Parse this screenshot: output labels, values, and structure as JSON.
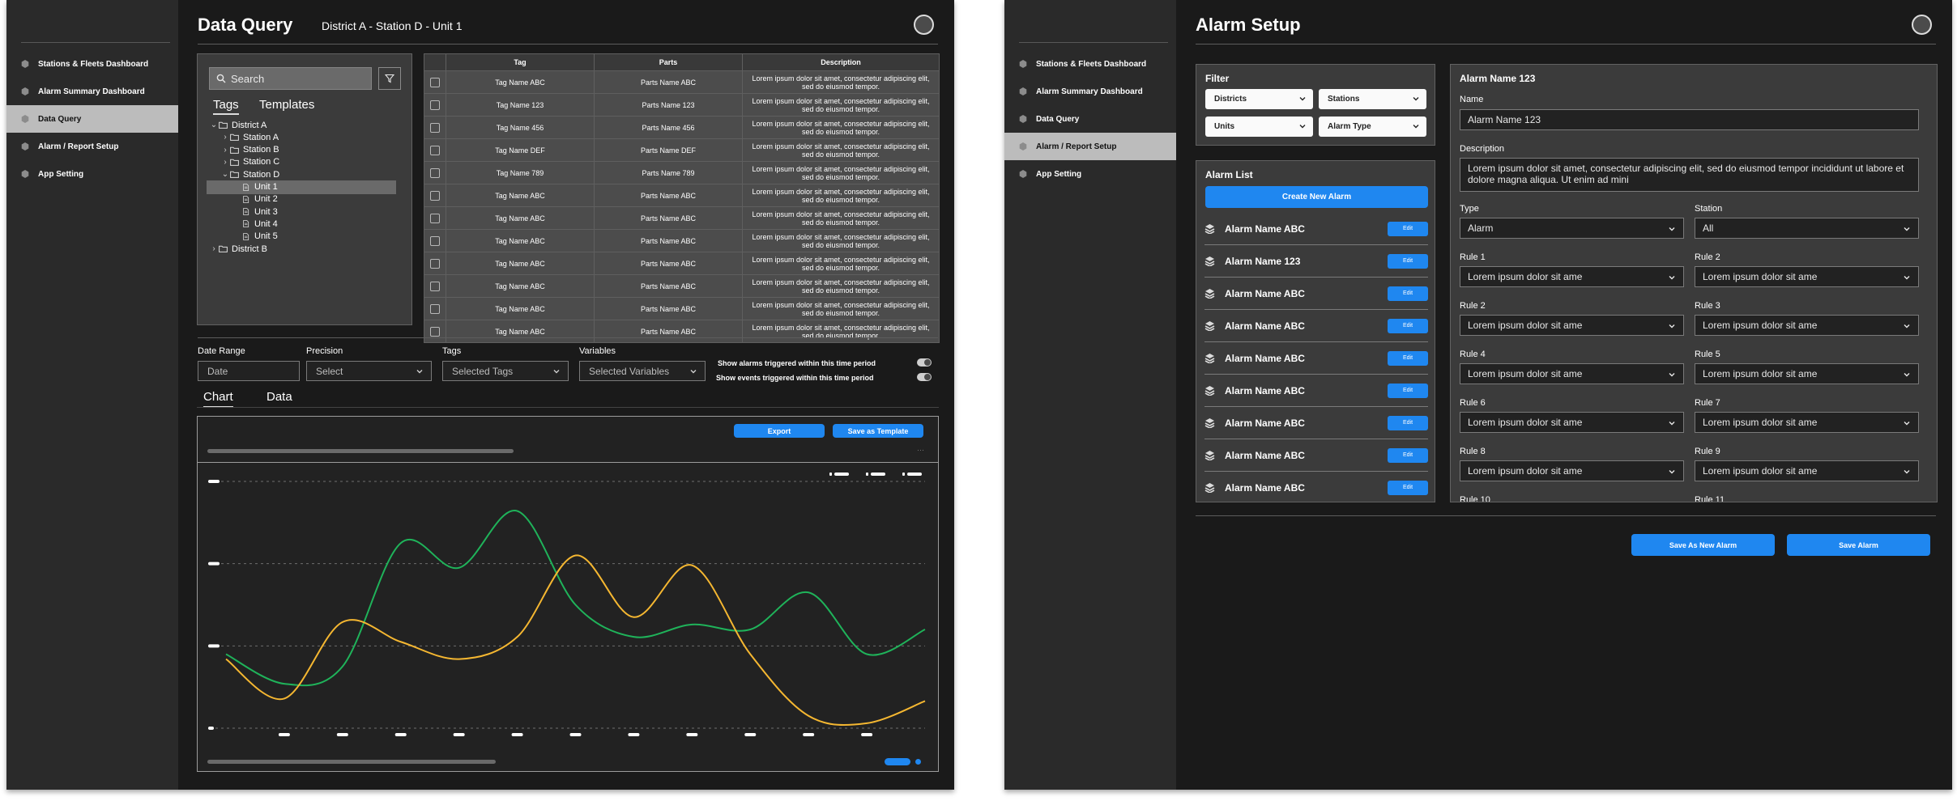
{
  "colors": {
    "accent": "#1f87f0",
    "series_green": "#1fb35a",
    "series_yellow": "#f5b731",
    "screen_bg": "#1a1a1a",
    "sidebar_bg": "#2a2a2a"
  },
  "sidebar": {
    "items": [
      {
        "label": "Stations & Fleets Dashboard",
        "icon": "hexagon-icon"
      },
      {
        "label": "Alarm Summary Dashboard",
        "icon": "hexagon-icon"
      },
      {
        "label": "Data Query",
        "icon": "hexagon-icon"
      },
      {
        "label": "Alarm / Report Setup",
        "icon": "hexagon-icon"
      },
      {
        "label": "App Setting",
        "icon": "hexagon-icon"
      }
    ]
  },
  "dq": {
    "title": "Data Query",
    "breadcrumb": "District A - Station D - Unit 1",
    "search_placeholder": "Search",
    "tree_tabs": [
      "Tags",
      "Templates"
    ],
    "tree": [
      {
        "label": "District A",
        "toggle": "⌄"
      },
      {
        "label": "Station A",
        "toggle": "›"
      },
      {
        "label": "Station B",
        "toggle": "›"
      },
      {
        "label": "Station C",
        "toggle": "›"
      },
      {
        "label": "Station D",
        "toggle": "⌄"
      },
      {
        "label": "Unit 1",
        "toggle": ""
      },
      {
        "label": "Unit 2",
        "toggle": ""
      },
      {
        "label": "Unit 3",
        "toggle": ""
      },
      {
        "label": "Unit 4",
        "toggle": ""
      },
      {
        "label": "Unit 5",
        "toggle": ""
      },
      {
        "label": "District B",
        "toggle": "›"
      }
    ],
    "table": {
      "headers": [
        "Tag",
        "Parts",
        "Description"
      ],
      "rows": [
        {
          "tag": "Tag Name ABC",
          "parts": "Parts Name ABC",
          "desc": "Lorem ipsum dolor sit amet, consectetur adipiscing elit, sed do eiusmod tempor."
        },
        {
          "tag": "Tag Name 123",
          "parts": "Parts Name 123",
          "desc": "Lorem ipsum dolor sit amet, consectetur adipiscing elit, sed do eiusmod tempor."
        },
        {
          "tag": "Tag Name 456",
          "parts": "Parts Name 456",
          "desc": "Lorem ipsum dolor sit amet, consectetur adipiscing elit, sed do eiusmod tempor."
        },
        {
          "tag": "Tag Name DEF",
          "parts": "Parts Name DEF",
          "desc": "Lorem ipsum dolor sit amet, consectetur adipiscing elit, sed do eiusmod tempor."
        },
        {
          "tag": "Tag Name 789",
          "parts": "Parts Name 789",
          "desc": "Lorem ipsum dolor sit amet, consectetur adipiscing elit, sed do eiusmod tempor."
        },
        {
          "tag": "Tag Name ABC",
          "parts": "Parts Name ABC",
          "desc": "Lorem ipsum dolor sit amet, consectetur adipiscing elit, sed do eiusmod tempor."
        },
        {
          "tag": "Tag Name ABC",
          "parts": "Parts Name ABC",
          "desc": "Lorem ipsum dolor sit amet, consectetur adipiscing elit, sed do eiusmod tempor."
        },
        {
          "tag": "Tag Name ABC",
          "parts": "Parts Name ABC",
          "desc": "Lorem ipsum dolor sit amet, consectetur adipiscing elit, sed do eiusmod tempor."
        },
        {
          "tag": "Tag Name ABC",
          "parts": "Parts Name ABC",
          "desc": "Lorem ipsum dolor sit amet, consectetur adipiscing elit, sed do eiusmod tempor."
        },
        {
          "tag": "Tag Name ABC",
          "parts": "Parts Name ABC",
          "desc": "Lorem ipsum dolor sit amet, consectetur adipiscing elit, sed do eiusmod tempor."
        },
        {
          "tag": "Tag Name ABC",
          "parts": "Parts Name ABC",
          "desc": "Lorem ipsum dolor sit amet, consectetur adipiscing elit, sed do eiusmod tempor."
        },
        {
          "tag": "Tag Name ABC",
          "parts": "Parts Name ABC",
          "desc": "Lorem ipsum dolor sit amet, consectetur adipiscing elit, sed do eiusmod tempor."
        }
      ]
    },
    "filters": {
      "date_range": {
        "label": "Date Range",
        "placeholder": "Date"
      },
      "precision": {
        "label": "Precision",
        "placeholder": "Select"
      },
      "tags": {
        "label": "Tags",
        "placeholder": "Selected Tags"
      },
      "variables": {
        "label": "Variables",
        "placeholder": "Selected Variables"
      },
      "toggle_alarms": "Show alarms triggered within this time period",
      "toggle_events": "Show events triggered within this time period"
    },
    "chart_tabs": [
      "Chart",
      "Data"
    ],
    "export_label": "Export",
    "save_template_label": "Save as Template"
  },
  "chart_data": {
    "type": "line",
    "title": "",
    "xlabel": "",
    "ylabel": "",
    "x": [
      0,
      1,
      2,
      3,
      4,
      5,
      6,
      7,
      8,
      9,
      10,
      11,
      12
    ],
    "ylim": [
      0,
      100
    ],
    "grid": true,
    "series": [
      {
        "color": "#1fb35a",
        "values": [
          30,
          18,
          25,
          75,
          65,
          88,
          50,
          37,
          42,
          40,
          55,
          30,
          40
        ]
      },
      {
        "color": "#f5b731",
        "values": [
          28,
          12,
          43,
          35,
          28,
          37,
          70,
          45,
          66,
          30,
          5,
          2,
          11
        ]
      }
    ]
  },
  "as": {
    "title": "Alarm Setup",
    "filter": {
      "title": "Filter",
      "dropdowns": [
        "Districts",
        "Stations",
        "Units",
        "Alarm Type"
      ]
    },
    "list": {
      "title": "Alarm List",
      "create_label": "Create New Alarm",
      "edit_label": "Edit",
      "items": [
        "Alarm Name ABC",
        "Alarm Name 123",
        "Alarm Name ABC",
        "Alarm Name ABC",
        "Alarm Name ABC",
        "Alarm Name ABC",
        "Alarm Name ABC",
        "Alarm Name ABC",
        "Alarm Name ABC"
      ]
    },
    "detail": {
      "title": "Alarm Name 123",
      "name_label": "Name",
      "name_value": "Alarm Name 123",
      "desc_label": "Description",
      "desc_value": "Lorem ipsum dolor sit amet, consectetur adipiscing elit, sed do eiusmod tempor incididunt ut labore et dolore magna aliqua. Ut enim ad mini",
      "type_label": "Type",
      "type_value": "Alarm",
      "station_label": "Station",
      "station_value": "All",
      "rules": [
        {
          "label": "Rule 1",
          "value": "Lorem ipsum dolor sit ame"
        },
        {
          "label": "Rule 2",
          "value": "Lorem ipsum dolor sit ame"
        },
        {
          "label": "Rule 2",
          "value": "Lorem ipsum dolor sit ame"
        },
        {
          "label": "Rule 3",
          "value": "Lorem ipsum dolor sit ame"
        },
        {
          "label": "Rule 4",
          "value": "Lorem ipsum dolor sit ame"
        },
        {
          "label": "Rule 5",
          "value": "Lorem ipsum dolor sit ame"
        },
        {
          "label": "Rule 6",
          "value": "Lorem ipsum dolor sit ame"
        },
        {
          "label": "Rule 7",
          "value": "Lorem ipsum dolor sit ame"
        },
        {
          "label": "Rule 8",
          "value": "Lorem ipsum dolor sit ame"
        },
        {
          "label": "Rule 9",
          "value": "Lorem ipsum dolor sit ame"
        }
      ],
      "rule_cutoff": [
        "Rule 10",
        "Rule 11"
      ]
    },
    "save_new_label": "Save As New Alarm",
    "save_label": "Save Alarm"
  }
}
